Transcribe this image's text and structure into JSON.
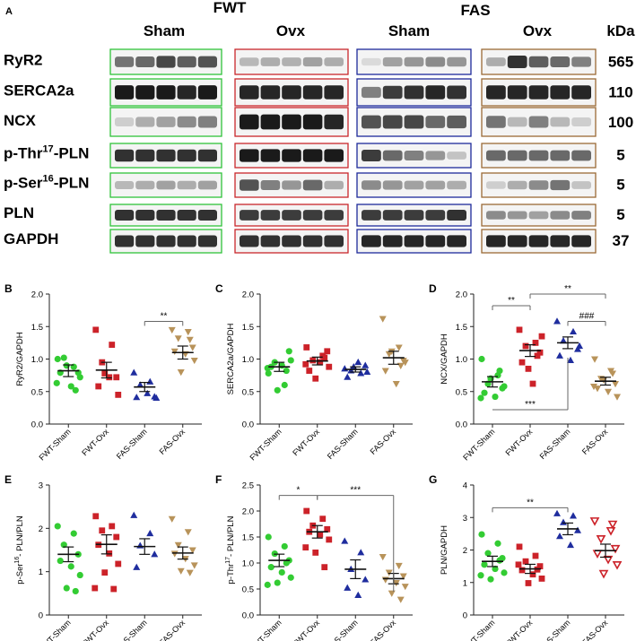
{
  "panel_a": {
    "letter": "A",
    "strain_headers": [
      "FWT",
      "FAS"
    ],
    "group_headers": [
      "Sham",
      "Ovx",
      "Sham",
      "Ovx"
    ],
    "kda_header": "kDa",
    "group_colors": [
      "#2fc33a",
      "#c8262b",
      "#1d2a9a",
      "#9a6a36"
    ],
    "rows": [
      {
        "label": "RyR2",
        "kda": "565"
      },
      {
        "label": "SERCA2a",
        "kda": "110"
      },
      {
        "label": "NCX",
        "kda": "100"
      },
      {
        "label": "p-Thr17-PLN",
        "label_pre": "p-Thr",
        "label_sup": "17",
        "label_post": "-PLN",
        "kda": "5"
      },
      {
        "label": "p-Ser16-PLN",
        "label_pre": "p-Ser",
        "label_sup": "16",
        "label_post": "-PLN",
        "kda": "5"
      },
      {
        "label": "PLN",
        "kda": "5"
      },
      {
        "label": "GAPDH",
        "kda": "37"
      }
    ]
  },
  "chart_data": [
    {
      "panel": "B",
      "type": "scatter",
      "categories": [
        "FWT-Sham",
        "FWT-Ovx",
        "FAS-Sham",
        "FAS-Ovx"
      ],
      "ylabel": "RyR2/GAPDH",
      "ylim": [
        0,
        2.0
      ],
      "yticks": [
        "0.0",
        "0.5",
        "1.0",
        "1.5",
        "2.0"
      ],
      "ytick_values": [
        0,
        0.5,
        1.0,
        1.5,
        2.0
      ],
      "colors": [
        "#33cc33",
        "#cc2229",
        "#1f2d9e",
        "#b8935a"
      ],
      "markers": [
        "circle",
        "square",
        "triangle",
        "triangle-down"
      ],
      "means": [
        0.82,
        0.83,
        0.57,
        1.1
      ],
      "sems": [
        0.09,
        0.12,
        0.07,
        0.1
      ],
      "points": [
        [
          1.0,
          0.88,
          1.02,
          0.79,
          0.79,
          0.58,
          0.72,
          0.9,
          0.52,
          0.63
        ],
        [
          1.45,
          1.22,
          0.95,
          0.72,
          0.58,
          0.72,
          0.45,
          0.78
        ],
        [
          0.79,
          0.65,
          0.6,
          0.42,
          0.41,
          0.47,
          0.4
        ],
        [
          1.45,
          1.42,
          1.32,
          1.18,
          1.12,
          1.08,
          0.98,
          0.8,
          1.3
        ]
      ],
      "significance": [
        {
          "from": 2,
          "to": 3,
          "y": 1.58,
          "label": "**"
        }
      ]
    },
    {
      "panel": "C",
      "type": "scatter",
      "categories": [
        "FWT-Sham",
        "FWT-Ovx",
        "FAS-Sham",
        "FAS-Ovx"
      ],
      "ylabel": "SERCA2a/GAPDH",
      "ylim": [
        0,
        2.0
      ],
      "yticks": [
        "0.0",
        "0.5",
        "1.0",
        "1.5",
        "2.0"
      ],
      "ytick_values": [
        0,
        0.5,
        1.0,
        1.5,
        2.0
      ],
      "colors": [
        "#33cc33",
        "#cc2229",
        "#1f2d9e",
        "#b8935a"
      ],
      "markers": [
        "circle",
        "square",
        "triangle",
        "triangle-down"
      ],
      "means": [
        0.88,
        0.97,
        0.84,
        1.02
      ],
      "sems": [
        0.07,
        0.06,
        0.04,
        0.1
      ],
      "points": [
        [
          0.78,
          0.6,
          0.95,
          1.12,
          0.88,
          0.9,
          0.98,
          0.52,
          0.82,
          0.86
        ],
        [
          1.18,
          1.05,
          0.98,
          1.12,
          0.82,
          0.95,
          0.88,
          0.7,
          1.02,
          0.92
        ],
        [
          0.85,
          0.78,
          0.82,
          0.9,
          0.72,
          0.95,
          0.8,
          0.88
        ],
        [
          1.62,
          1.18,
          1.08,
          0.98,
          0.82,
          0.62,
          0.95,
          1.12,
          0.9
        ]
      ],
      "significance": []
    },
    {
      "panel": "D",
      "type": "scatter",
      "categories": [
        "FWT-Sham",
        "FWT-Ovx",
        "FAS-Sham",
        "FAS-Ovx"
      ],
      "ylabel": "NCX/GAPDH",
      "ylim": [
        0,
        2.0
      ],
      "yticks": [
        "0.0",
        "0.5",
        "1.0",
        "1.5",
        "2.0"
      ],
      "ytick_values": [
        0,
        0.5,
        1.0,
        1.5,
        2.0
      ],
      "colors": [
        "#33cc33",
        "#cc2229",
        "#1f2d9e",
        "#b8935a"
      ],
      "markers": [
        "circle",
        "square",
        "triangle",
        "triangle-down"
      ],
      "means": [
        0.65,
        1.13,
        1.25,
        0.66
      ],
      "sems": [
        0.08,
        0.09,
        0.09,
        0.06
      ],
      "points": [
        [
          1.0,
          0.75,
          0.62,
          0.55,
          0.48,
          0.42,
          0.58,
          0.7,
          0.82,
          0.4
        ],
        [
          1.45,
          1.25,
          1.2,
          1.1,
          0.95,
          0.62,
          1.35,
          0.85,
          1.05
        ],
        [
          1.58,
          1.42,
          1.28,
          1.15,
          1.05,
          0.98,
          1.2
        ],
        [
          1.0,
          0.82,
          0.7,
          0.62,
          0.55,
          0.5,
          0.42,
          0.68,
          0.78,
          0.58
        ]
      ],
      "significance": [
        {
          "from": 0,
          "to": 1,
          "y": 1.82,
          "label": "**"
        },
        {
          "from": 1,
          "to": 3,
          "y": 2.0,
          "label": "**"
        },
        {
          "from": 2,
          "to": 3,
          "y": 1.58,
          "label": "###"
        },
        {
          "from": 0,
          "to": 2,
          "y": 0.22,
          "label": "***",
          "drop_to": 1.02,
          "below": true
        }
      ]
    },
    {
      "panel": "E",
      "type": "scatter",
      "categories": [
        "FWT-Sham",
        "FWT-Ovx",
        "FAS-Sham",
        "FAS-Ovx"
      ],
      "ylabel": "p-Ser16- PLN/PLN",
      "ylabel_pre": "p-Ser",
      "ylabel_sup": "16",
      "ylabel_post": "- PLN/PLN",
      "ylim": [
        0,
        3
      ],
      "yticks": [
        "0",
        "1",
        "2",
        "3"
      ],
      "ytick_values": [
        0,
        1,
        2,
        3
      ],
      "colors": [
        "#33cc33",
        "#cc2229",
        "#1f2d9e",
        "#b8935a"
      ],
      "markers": [
        "circle",
        "square",
        "triangle",
        "triangle-down"
      ],
      "means": [
        1.4,
        1.63,
        1.58,
        1.43
      ],
      "sems": [
        0.17,
        0.22,
        0.18,
        0.14
      ],
      "points": [
        [
          2.05,
          1.88,
          1.62,
          1.4,
          1.25,
          1.12,
          0.92,
          0.62,
          0.55
        ],
        [
          2.28,
          2.05,
          1.95,
          1.8,
          1.62,
          1.42,
          1.18,
          0.98,
          0.6,
          0.62
        ],
        [
          2.3,
          1.88,
          1.6,
          1.4,
          1.1
        ],
        [
          2.22,
          1.92,
          1.62,
          1.5,
          1.42,
          1.3,
          1.15,
          1.02,
          0.98
        ]
      ],
      "significance": []
    },
    {
      "panel": "F",
      "type": "scatter",
      "categories": [
        "FWT-Sham",
        "FWT-Ovx",
        "FAS-Sham",
        "FAS-Ovx"
      ],
      "ylabel": "p-Thr17- PLN/PLN",
      "ylabel_pre": "p-Thr",
      "ylabel_sup": "17",
      "ylabel_post": "- PLN/PLN",
      "ylim": [
        0,
        2.5
      ],
      "yticks": [
        "0.0",
        "0.5",
        "1.0",
        "1.5",
        "2.0",
        "2.5"
      ],
      "ytick_values": [
        0,
        0.5,
        1.0,
        1.5,
        2.0,
        2.5
      ],
      "colors": [
        "#33cc33",
        "#cc2229",
        "#1f2d9e",
        "#b8935a"
      ],
      "markers": [
        "circle",
        "square",
        "triangle",
        "triangle-down"
      ],
      "means": [
        1.05,
        1.6,
        0.88,
        0.7
      ],
      "sems": [
        0.12,
        0.12,
        0.18,
        0.1
      ],
      "points": [
        [
          1.5,
          1.32,
          1.18,
          1.05,
          0.92,
          0.82,
          0.72,
          0.62,
          1.0,
          0.58
        ],
        [
          2.0,
          1.85,
          1.72,
          1.65,
          1.6,
          1.55,
          1.45,
          1.2,
          0.92,
          1.3
        ],
        [
          1.42,
          1.2,
          0.88,
          0.68,
          0.52,
          0.38
        ],
        [
          1.12,
          0.95,
          0.82,
          0.75,
          0.68,
          0.62,
          0.55,
          0.42,
          0.3
        ]
      ],
      "significance": [
        {
          "from": 0,
          "to": 1,
          "y": 2.3,
          "label": "*"
        },
        {
          "from": 1,
          "to": 3,
          "y": 2.3,
          "label": "***",
          "drop_to": 0.45
        }
      ]
    },
    {
      "panel": "G",
      "type": "scatter",
      "categories": [
        "FWT-Sham",
        "FWT-Ovx",
        "FAS-Sham",
        "FAS-Ovx"
      ],
      "ylabel": "PLN/GAPDH",
      "ylim": [
        0,
        4
      ],
      "yticks": [
        "0",
        "1",
        "2",
        "3",
        "4"
      ],
      "ytick_values": [
        0,
        1,
        2,
        3,
        4
      ],
      "colors": [
        "#33cc33",
        "#cc2229",
        "#1f2d9e",
        "#cc2229"
      ],
      "markers": [
        "circle",
        "square",
        "triangle",
        "triangle-down-open"
      ],
      "means": [
        1.65,
        1.42,
        2.65,
        1.98
      ],
      "sems": [
        0.16,
        0.14,
        0.18,
        0.2
      ],
      "points": [
        [
          2.48,
          2.2,
          1.9,
          1.75,
          1.55,
          1.42,
          1.3,
          1.1,
          1.68,
          1.22
        ],
        [
          2.1,
          1.82,
          1.65,
          1.5,
          1.38,
          1.25,
          1.12,
          0.98,
          1.4,
          1.55
        ],
        [
          3.12,
          3.05,
          2.85,
          2.6,
          2.42,
          2.15
        ],
        [
          2.9,
          2.6,
          2.35,
          2.05,
          1.9,
          1.72,
          1.55,
          1.28,
          2.8
        ]
      ],
      "significance": [
        {
          "from": 0,
          "to": 2,
          "y": 3.3,
          "label": "**"
        }
      ]
    }
  ]
}
